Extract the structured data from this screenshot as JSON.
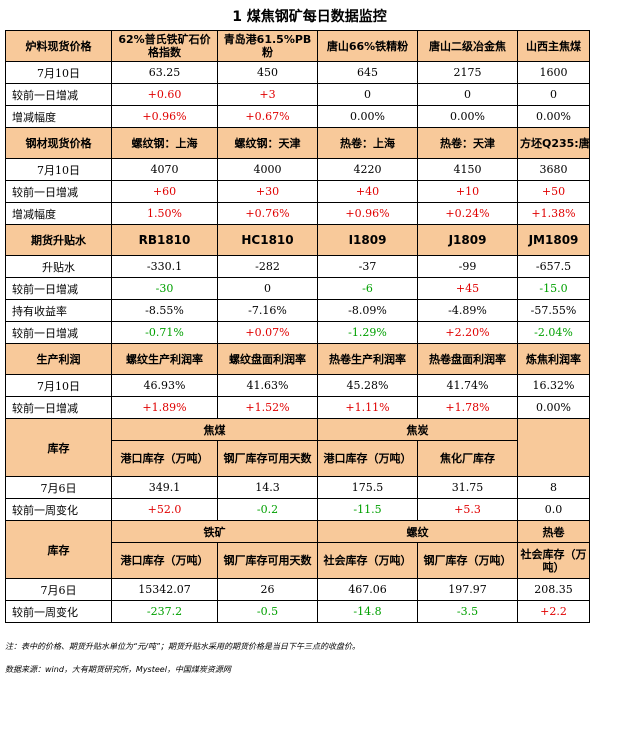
{
  "title": "1 煤焦钢矿每日数据监控",
  "s1": {
    "header": [
      "炉料现货价格",
      "62%普氏铁矿石价格指数",
      "青岛港61.5%PB粉",
      "唐山66%铁精粉",
      "唐山二级冶金焦",
      "山西主焦煤"
    ],
    "rows": [
      {
        "label": "7月10日",
        "cells": [
          "63.25",
          "450",
          "645",
          "2175",
          "1600"
        ]
      },
      {
        "label": "较前一日增减",
        "cells": [
          "+0.60",
          "+3",
          "0",
          "0",
          "0"
        ]
      },
      {
        "label": "增减幅度",
        "cells": [
          "+0.96%",
          "+0.67%",
          "0.00%",
          "0.00%",
          "0.00%"
        ]
      }
    ]
  },
  "s2": {
    "header": [
      "钢材现货价格",
      "螺纹钢：上海",
      "螺纹钢：天津",
      "热卷：上海",
      "热卷：天津",
      "方坯Q235:唐山"
    ],
    "rows": [
      {
        "label": "7月10日",
        "cells": [
          "4070",
          "4000",
          "4220",
          "4150",
          "3680"
        ]
      },
      {
        "label": "较前一日增减",
        "cells": [
          "+60",
          "+30",
          "+40",
          "+10",
          "+50"
        ]
      },
      {
        "label": "增减幅度",
        "cells": [
          "1.50%",
          "+0.76%",
          "+0.96%",
          "+0.24%",
          "+1.38%"
        ]
      }
    ]
  },
  "s3": {
    "header": [
      "期货升贴水",
      "RB1810",
      "HC1810",
      "I1809",
      "J1809",
      "JM1809"
    ],
    "rows": [
      {
        "label": "升贴水",
        "cells": [
          "-330.1",
          "-282",
          "-37",
          "-99",
          "-657.5"
        ]
      },
      {
        "label": "较前一日增减",
        "cells": [
          "-30",
          "0",
          "-6",
          "+45",
          "-15.0"
        ]
      },
      {
        "label": "持有收益率",
        "cells": [
          "-8.55%",
          "-7.16%",
          "-8.09%",
          "-4.89%",
          "-57.55%"
        ]
      },
      {
        "label": "较前一日增减",
        "cells": [
          "-0.71%",
          "+0.07%",
          "-1.29%",
          "+2.20%",
          "-2.04%"
        ]
      }
    ]
  },
  "s4": {
    "header": [
      "生产利润",
      "螺纹生产利润率",
      "螺纹盘面利润率",
      "热卷生产利润率",
      "热卷盘面利润率",
      "炼焦利润率"
    ],
    "rows": [
      {
        "label": "7月10日",
        "cells": [
          "46.93%",
          "41.63%",
          "45.28%",
          "41.74%",
          "16.32%"
        ]
      },
      {
        "label": "较前一日增减",
        "cells": [
          "+1.89%",
          "+1.52%",
          "+1.11%",
          "+1.78%",
          "0.00%"
        ]
      }
    ]
  },
  "s5": {
    "label": "库存",
    "groups": [
      "焦煤",
      "焦炭"
    ],
    "subs": [
      "港口库存（万吨）",
      "钢厂库存可用天数",
      "港口库存（万吨）",
      "焦化厂库存",
      "钢厂库存可用天数"
    ],
    "rows": [
      {
        "label": "7月6日",
        "cells": [
          "349.1",
          "14.3",
          "175.5",
          "31.75",
          "8"
        ]
      },
      {
        "label": "较前一周变化",
        "cells": [
          "+52.0",
          "-0.2",
          "-11.5",
          "+5.3",
          "0.0"
        ]
      }
    ]
  },
  "s6": {
    "label": "库存",
    "groups": [
      "铁矿",
      "螺纹",
      "热卷"
    ],
    "subs": [
      "港口库存（万吨）",
      "钢厂库存可用天数",
      "社会库存（万吨）",
      "钢厂库存（万吨）",
      "社会库存（万吨）"
    ],
    "rows": [
      {
        "label": "7月6日",
        "cells": [
          "15342.07",
          "26",
          "467.06",
          "197.97",
          "208.35"
        ]
      },
      {
        "label": "较前一周变化",
        "cells": [
          "-237.2",
          "-0.5",
          "-14.8",
          "-3.5",
          "+2.2"
        ]
      }
    ]
  },
  "notes": {
    "note1": "注：表中的价格、期货升贴水单位为“元/吨”；期货升贴水采用的期货价格是当日下午三点的收盘价。",
    "note2": "数据来源：wind，大有期货研究所，Mysteel，中国煤炭资源网"
  },
  "colors": {
    "header_bg": "#f8c99a",
    "up": "#e00000",
    "down": "#00a000"
  }
}
